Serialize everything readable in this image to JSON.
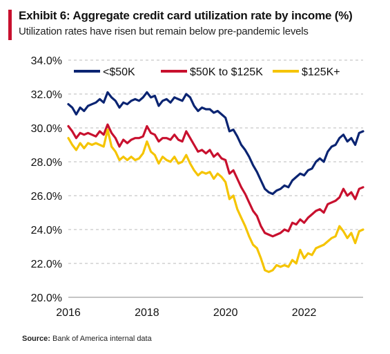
{
  "header": {
    "title": "Exhibit 6: Aggregate credit card utilization rate by income (%)",
    "subtitle": "Utilization rates have risen but remain below pre-pandemic levels"
  },
  "source": {
    "label": "Source:",
    "text": "Bank of America internal data"
  },
  "colors": {
    "accent": "#c8102e",
    "series_low": "#0a2472",
    "series_mid": "#c8102e",
    "series_high": "#f5c400",
    "grid": "#b8b8b8"
  },
  "chart_data": {
    "type": "line",
    "title": "Exhibit 6: Aggregate credit card utilization rate by income (%)",
    "subtitle": "Utilization rates have risen but remain below pre-pandemic levels",
    "xlabel": "",
    "ylabel": "",
    "xlim": [
      2016.0,
      2023.5
    ],
    "ylim": [
      20.0,
      34.0
    ],
    "x_ticks": [
      2016,
      2018,
      2020,
      2022
    ],
    "x_tick_labels": [
      "2016",
      "2018",
      "2020",
      "2022"
    ],
    "y_ticks": [
      20,
      22,
      24,
      26,
      28,
      30,
      32,
      34
    ],
    "y_tick_labels": [
      "20.0%",
      "22.0%",
      "24.0%",
      "26.0%",
      "28.0%",
      "30.0%",
      "32.0%",
      "34.0%"
    ],
    "grid": "horizontal dashed",
    "legend_position": "top",
    "series": [
      {
        "name": "<$50K",
        "color": "#0a2472",
        "points": [
          [
            2016.0,
            31.4
          ],
          [
            2016.1,
            31.2
          ],
          [
            2016.2,
            30.8
          ],
          [
            2016.3,
            31.2
          ],
          [
            2016.4,
            31.0
          ],
          [
            2016.5,
            31.3
          ],
          [
            2016.6,
            31.4
          ],
          [
            2016.7,
            31.5
          ],
          [
            2016.8,
            31.7
          ],
          [
            2016.9,
            31.5
          ],
          [
            2017.0,
            32.1
          ],
          [
            2017.1,
            31.8
          ],
          [
            2017.2,
            31.6
          ],
          [
            2017.3,
            31.2
          ],
          [
            2017.4,
            31.5
          ],
          [
            2017.5,
            31.4
          ],
          [
            2017.6,
            31.6
          ],
          [
            2017.7,
            31.7
          ],
          [
            2017.8,
            31.6
          ],
          [
            2017.9,
            31.8
          ],
          [
            2018.0,
            32.1
          ],
          [
            2018.1,
            31.8
          ],
          [
            2018.2,
            31.9
          ],
          [
            2018.3,
            31.3
          ],
          [
            2018.4,
            31.6
          ],
          [
            2018.5,
            31.7
          ],
          [
            2018.6,
            31.5
          ],
          [
            2018.7,
            31.8
          ],
          [
            2018.8,
            31.7
          ],
          [
            2018.9,
            31.6
          ],
          [
            2019.0,
            32.0
          ],
          [
            2019.1,
            31.8
          ],
          [
            2019.2,
            31.3
          ],
          [
            2019.3,
            31.0
          ],
          [
            2019.4,
            31.2
          ],
          [
            2019.5,
            31.1
          ],
          [
            2019.6,
            31.1
          ],
          [
            2019.7,
            30.9
          ],
          [
            2019.8,
            31.0
          ],
          [
            2019.9,
            30.8
          ],
          [
            2020.0,
            30.6
          ],
          [
            2020.1,
            29.8
          ],
          [
            2020.2,
            29.9
          ],
          [
            2020.3,
            29.5
          ],
          [
            2020.4,
            29.0
          ],
          [
            2020.5,
            28.7
          ],
          [
            2020.6,
            28.3
          ],
          [
            2020.7,
            27.8
          ],
          [
            2020.8,
            27.4
          ],
          [
            2020.9,
            26.9
          ],
          [
            2021.0,
            26.4
          ],
          [
            2021.1,
            26.2
          ],
          [
            2021.2,
            26.1
          ],
          [
            2021.3,
            26.3
          ],
          [
            2021.4,
            26.4
          ],
          [
            2021.5,
            26.6
          ],
          [
            2021.6,
            26.5
          ],
          [
            2021.7,
            26.9
          ],
          [
            2021.8,
            27.1
          ],
          [
            2021.9,
            27.3
          ],
          [
            2022.0,
            27.2
          ],
          [
            2022.1,
            27.5
          ],
          [
            2022.2,
            27.6
          ],
          [
            2022.3,
            28.0
          ],
          [
            2022.4,
            28.2
          ],
          [
            2022.5,
            28.0
          ],
          [
            2022.6,
            28.6
          ],
          [
            2022.7,
            28.9
          ],
          [
            2022.8,
            29.0
          ],
          [
            2022.9,
            29.4
          ],
          [
            2023.0,
            29.6
          ],
          [
            2023.1,
            29.2
          ],
          [
            2023.2,
            29.4
          ],
          [
            2023.3,
            29.0
          ],
          [
            2023.4,
            29.7
          ],
          [
            2023.5,
            29.8
          ]
        ]
      },
      {
        "name": "$50K to $125K",
        "color": "#c8102e",
        "points": [
          [
            2016.0,
            30.1
          ],
          [
            2016.1,
            29.8
          ],
          [
            2016.2,
            29.4
          ],
          [
            2016.3,
            29.7
          ],
          [
            2016.4,
            29.6
          ],
          [
            2016.5,
            29.7
          ],
          [
            2016.6,
            29.6
          ],
          [
            2016.7,
            29.5
          ],
          [
            2016.8,
            29.8
          ],
          [
            2016.9,
            29.6
          ],
          [
            2017.0,
            30.2
          ],
          [
            2017.1,
            29.7
          ],
          [
            2017.2,
            29.4
          ],
          [
            2017.3,
            28.9
          ],
          [
            2017.4,
            29.3
          ],
          [
            2017.5,
            29.1
          ],
          [
            2017.6,
            29.3
          ],
          [
            2017.7,
            29.4
          ],
          [
            2017.8,
            29.4
          ],
          [
            2017.9,
            29.5
          ],
          [
            2018.0,
            30.1
          ],
          [
            2018.1,
            29.7
          ],
          [
            2018.2,
            29.6
          ],
          [
            2018.3,
            29.2
          ],
          [
            2018.4,
            29.4
          ],
          [
            2018.5,
            29.4
          ],
          [
            2018.6,
            29.3
          ],
          [
            2018.7,
            29.6
          ],
          [
            2018.8,
            29.3
          ],
          [
            2018.9,
            29.2
          ],
          [
            2019.0,
            29.8
          ],
          [
            2019.1,
            29.4
          ],
          [
            2019.2,
            29.0
          ],
          [
            2019.3,
            28.6
          ],
          [
            2019.4,
            28.7
          ],
          [
            2019.5,
            28.5
          ],
          [
            2019.6,
            28.7
          ],
          [
            2019.7,
            28.3
          ],
          [
            2019.8,
            28.5
          ],
          [
            2019.9,
            28.2
          ],
          [
            2020.0,
            28.1
          ],
          [
            2020.1,
            27.3
          ],
          [
            2020.2,
            27.5
          ],
          [
            2020.3,
            27.0
          ],
          [
            2020.4,
            26.5
          ],
          [
            2020.5,
            26.1
          ],
          [
            2020.6,
            25.6
          ],
          [
            2020.7,
            25.1
          ],
          [
            2020.8,
            24.8
          ],
          [
            2020.9,
            24.2
          ],
          [
            2021.0,
            23.8
          ],
          [
            2021.1,
            23.7
          ],
          [
            2021.2,
            23.6
          ],
          [
            2021.3,
            23.7
          ],
          [
            2021.4,
            23.8
          ],
          [
            2021.5,
            24.0
          ],
          [
            2021.6,
            23.9
          ],
          [
            2021.7,
            24.4
          ],
          [
            2021.8,
            24.3
          ],
          [
            2021.9,
            24.6
          ],
          [
            2022.0,
            24.4
          ],
          [
            2022.1,
            24.7
          ],
          [
            2022.2,
            24.9
          ],
          [
            2022.3,
            25.1
          ],
          [
            2022.4,
            25.2
          ],
          [
            2022.5,
            25.0
          ],
          [
            2022.6,
            25.5
          ],
          [
            2022.7,
            25.6
          ],
          [
            2022.8,
            25.7
          ],
          [
            2022.9,
            25.9
          ],
          [
            2023.0,
            26.4
          ],
          [
            2023.1,
            26.0
          ],
          [
            2023.2,
            26.2
          ],
          [
            2023.3,
            25.8
          ],
          [
            2023.4,
            26.4
          ],
          [
            2023.5,
            26.5
          ]
        ]
      },
      {
        "name": "$125K+",
        "color": "#f5c400",
        "points": [
          [
            2016.0,
            29.4
          ],
          [
            2016.1,
            29.0
          ],
          [
            2016.2,
            28.7
          ],
          [
            2016.3,
            29.1
          ],
          [
            2016.4,
            28.8
          ],
          [
            2016.5,
            29.1
          ],
          [
            2016.6,
            29.0
          ],
          [
            2016.7,
            29.1
          ],
          [
            2016.8,
            29.0
          ],
          [
            2016.9,
            28.9
          ],
          [
            2017.0,
            29.9
          ],
          [
            2017.1,
            28.9
          ],
          [
            2017.2,
            28.6
          ],
          [
            2017.3,
            28.1
          ],
          [
            2017.4,
            28.3
          ],
          [
            2017.5,
            28.1
          ],
          [
            2017.6,
            28.3
          ],
          [
            2017.7,
            28.1
          ],
          [
            2017.8,
            28.2
          ],
          [
            2017.9,
            28.5
          ],
          [
            2018.0,
            29.2
          ],
          [
            2018.1,
            28.6
          ],
          [
            2018.2,
            28.4
          ],
          [
            2018.3,
            27.9
          ],
          [
            2018.4,
            28.3
          ],
          [
            2018.5,
            28.1
          ],
          [
            2018.6,
            28.0
          ],
          [
            2018.7,
            28.3
          ],
          [
            2018.8,
            27.9
          ],
          [
            2018.9,
            28.0
          ],
          [
            2019.0,
            28.4
          ],
          [
            2019.1,
            27.9
          ],
          [
            2019.2,
            27.5
          ],
          [
            2019.3,
            27.2
          ],
          [
            2019.4,
            27.4
          ],
          [
            2019.5,
            27.3
          ],
          [
            2019.6,
            27.4
          ],
          [
            2019.7,
            27.0
          ],
          [
            2019.8,
            27.3
          ],
          [
            2019.9,
            27.1
          ],
          [
            2020.0,
            26.8
          ],
          [
            2020.1,
            25.8
          ],
          [
            2020.2,
            26.0
          ],
          [
            2020.3,
            25.2
          ],
          [
            2020.4,
            24.7
          ],
          [
            2020.5,
            24.2
          ],
          [
            2020.6,
            23.6
          ],
          [
            2020.7,
            23.1
          ],
          [
            2020.8,
            22.9
          ],
          [
            2020.9,
            22.3
          ],
          [
            2021.0,
            21.6
          ],
          [
            2021.1,
            21.5
          ],
          [
            2021.2,
            21.6
          ],
          [
            2021.3,
            21.9
          ],
          [
            2021.4,
            21.8
          ],
          [
            2021.5,
            21.9
          ],
          [
            2021.6,
            21.8
          ],
          [
            2021.7,
            22.2
          ],
          [
            2021.8,
            22.0
          ],
          [
            2021.9,
            22.8
          ],
          [
            2022.0,
            22.3
          ],
          [
            2022.1,
            22.6
          ],
          [
            2022.2,
            22.5
          ],
          [
            2022.3,
            22.9
          ],
          [
            2022.4,
            23.0
          ],
          [
            2022.5,
            23.1
          ],
          [
            2022.6,
            23.3
          ],
          [
            2022.7,
            23.5
          ],
          [
            2022.8,
            23.6
          ],
          [
            2022.9,
            24.2
          ],
          [
            2023.0,
            23.9
          ],
          [
            2023.1,
            23.5
          ],
          [
            2023.2,
            23.8
          ],
          [
            2023.3,
            23.2
          ],
          [
            2023.4,
            23.9
          ],
          [
            2023.5,
            24.0
          ]
        ]
      }
    ]
  }
}
